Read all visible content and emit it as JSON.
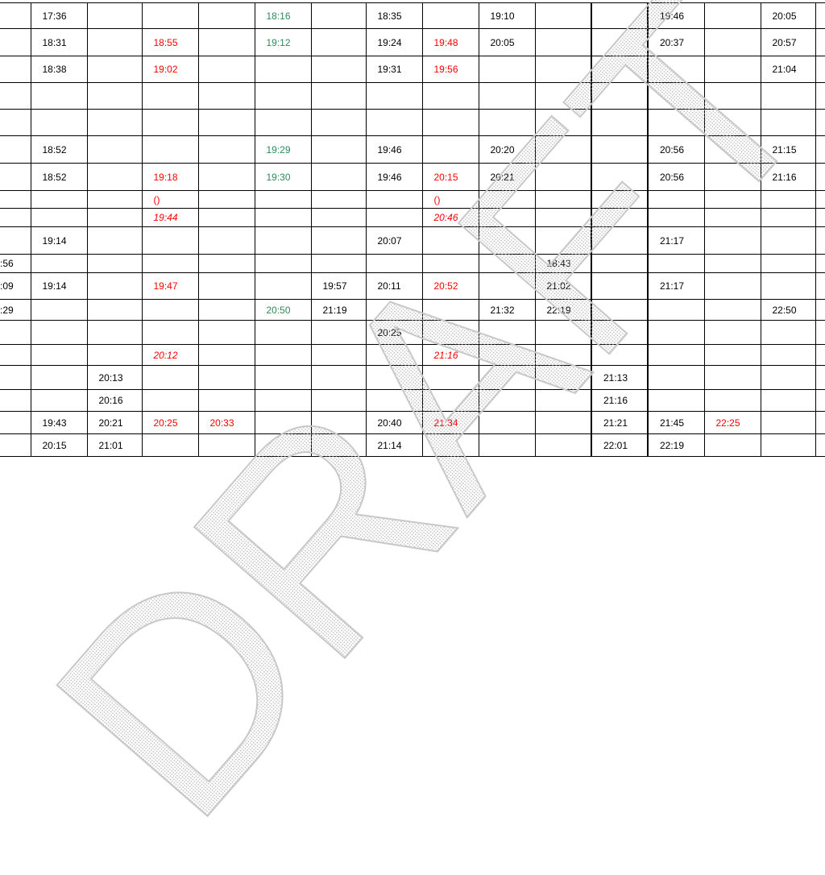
{
  "table": {
    "rows": [
      [
        null,
        {
          "text": "17:36"
        },
        null,
        null,
        null,
        {
          "text": "18:16",
          "color": "#2e8b57"
        },
        null,
        {
          "text": "18:35"
        },
        null,
        {
          "text": "19:10"
        },
        null,
        null,
        {
          "text": "19:46"
        },
        null,
        {
          "text": "20:05"
        },
        null
      ],
      [
        null,
        {
          "text": "18:31"
        },
        null,
        {
          "text": "18:55",
          "color": "#ff0000"
        },
        null,
        {
          "text": "19:12",
          "color": "#2e8b57"
        },
        null,
        {
          "text": "19:24"
        },
        {
          "text": "19:48",
          "color": "#ff0000"
        },
        {
          "text": "20:05"
        },
        null,
        null,
        {
          "text": "20:37"
        },
        null,
        {
          "text": "20:57"
        },
        null
      ],
      [
        null,
        {
          "text": "18:38"
        },
        null,
        {
          "text": "19:02",
          "color": "#ff0000"
        },
        null,
        null,
        null,
        {
          "text": "19:31"
        },
        {
          "text": "19:56",
          "color": "#ff0000"
        },
        null,
        null,
        null,
        null,
        null,
        {
          "text": "21:04"
        },
        null
      ],
      [
        null,
        null,
        null,
        null,
        null,
        null,
        null,
        null,
        null,
        null,
        null,
        null,
        null,
        null,
        null,
        null
      ],
      [
        null,
        null,
        null,
        null,
        null,
        null,
        null,
        null,
        null,
        null,
        null,
        null,
        null,
        null,
        null,
        null
      ],
      [
        null,
        {
          "text": "18:52"
        },
        null,
        null,
        null,
        {
          "text": "19:29",
          "color": "#2e8b57"
        },
        null,
        {
          "text": "19:46"
        },
        null,
        {
          "text": "20:20"
        },
        null,
        null,
        {
          "text": "20:56"
        },
        null,
        {
          "text": "21:15"
        },
        null
      ],
      [
        null,
        {
          "text": "18:52"
        },
        null,
        {
          "text": "19:18",
          "color": "#ff0000"
        },
        null,
        {
          "text": "19:30",
          "color": "#2e8b57"
        },
        null,
        {
          "text": "19:46"
        },
        {
          "text": "20:15",
          "color": "#ff0000"
        },
        {
          "text": "20:21"
        },
        null,
        null,
        {
          "text": "20:56"
        },
        null,
        {
          "text": "21:16"
        },
        null
      ],
      [
        null,
        null,
        null,
        {
          "text": "()",
          "color": "#ff0000"
        },
        null,
        null,
        null,
        null,
        {
          "text": "()",
          "color": "#ff0000"
        },
        null,
        null,
        null,
        null,
        null,
        null,
        null
      ],
      [
        null,
        null,
        null,
        {
          "text": "19:44",
          "color": "#ff0000",
          "italic": true
        },
        null,
        null,
        null,
        null,
        {
          "text": "20:46",
          "color": "#ff0000",
          "italic": true
        },
        null,
        null,
        null,
        null,
        null,
        null,
        null
      ],
      [
        null,
        {
          "text": "19:14"
        },
        null,
        null,
        null,
        null,
        null,
        {
          "text": "20:07"
        },
        null,
        null,
        null,
        null,
        {
          "text": "21:17"
        },
        null,
        null,
        null
      ],
      [
        {
          "text": ":56"
        },
        null,
        null,
        null,
        null,
        null,
        null,
        null,
        null,
        null,
        {
          "text": "18:43"
        },
        null,
        null,
        null,
        null,
        null
      ],
      [
        {
          "text": ":09"
        },
        {
          "text": "19:14"
        },
        null,
        {
          "text": "19:47",
          "color": "#ff0000"
        },
        null,
        null,
        {
          "text": "19:57"
        },
        {
          "text": "20:11"
        },
        {
          "text": "20:52",
          "color": "#ff0000"
        },
        null,
        {
          "text": "21:02"
        },
        null,
        {
          "text": "21:17"
        },
        null,
        null,
        null
      ],
      [
        {
          "text": ":29"
        },
        null,
        null,
        null,
        null,
        {
          "text": "20:50",
          "color": "#2e8b57"
        },
        {
          "text": "21:19"
        },
        null,
        null,
        {
          "text": "21:32"
        },
        {
          "text": "22:19"
        },
        null,
        null,
        null,
        {
          "text": "22:50"
        },
        null
      ],
      [
        null,
        null,
        null,
        null,
        null,
        null,
        null,
        {
          "text": "20:25"
        },
        null,
        null,
        null,
        null,
        null,
        null,
        null,
        null
      ],
      [
        null,
        null,
        null,
        {
          "text": "20:12",
          "color": "#ff0000",
          "italic": true
        },
        null,
        null,
        null,
        null,
        {
          "text": "21:16",
          "color": "#ff0000",
          "italic": true
        },
        null,
        null,
        null,
        null,
        null,
        null,
        null
      ],
      [
        null,
        null,
        {
          "text": "20:13"
        },
        null,
        null,
        null,
        null,
        null,
        null,
        null,
        null,
        {
          "text": "21:13"
        },
        null,
        null,
        null,
        null
      ],
      [
        null,
        null,
        {
          "text": "20:16"
        },
        null,
        null,
        null,
        null,
        null,
        null,
        null,
        null,
        {
          "text": "21:16"
        },
        null,
        null,
        null,
        null
      ],
      [
        null,
        {
          "text": "19:43"
        },
        {
          "text": "20:21"
        },
        {
          "text": "20:25",
          "color": "#ff0000"
        },
        {
          "text": "20:33",
          "color": "#ff0000"
        },
        null,
        null,
        {
          "text": "20:40"
        },
        {
          "text": "21:34",
          "color": "#ff0000"
        },
        null,
        null,
        {
          "text": "21:21"
        },
        {
          "text": "21:45"
        },
        {
          "text": "22:25",
          "color": "#ff0000"
        },
        null,
        null
      ],
      [
        null,
        {
          "text": "20:15"
        },
        {
          "text": "21:01"
        },
        null,
        null,
        null,
        null,
        {
          "text": "21:14"
        },
        null,
        null,
        null,
        {
          "text": "22:01"
        },
        {
          "text": "22:19"
        },
        null,
        null,
        null
      ]
    ]
  },
  "watermark": "DRAFT"
}
